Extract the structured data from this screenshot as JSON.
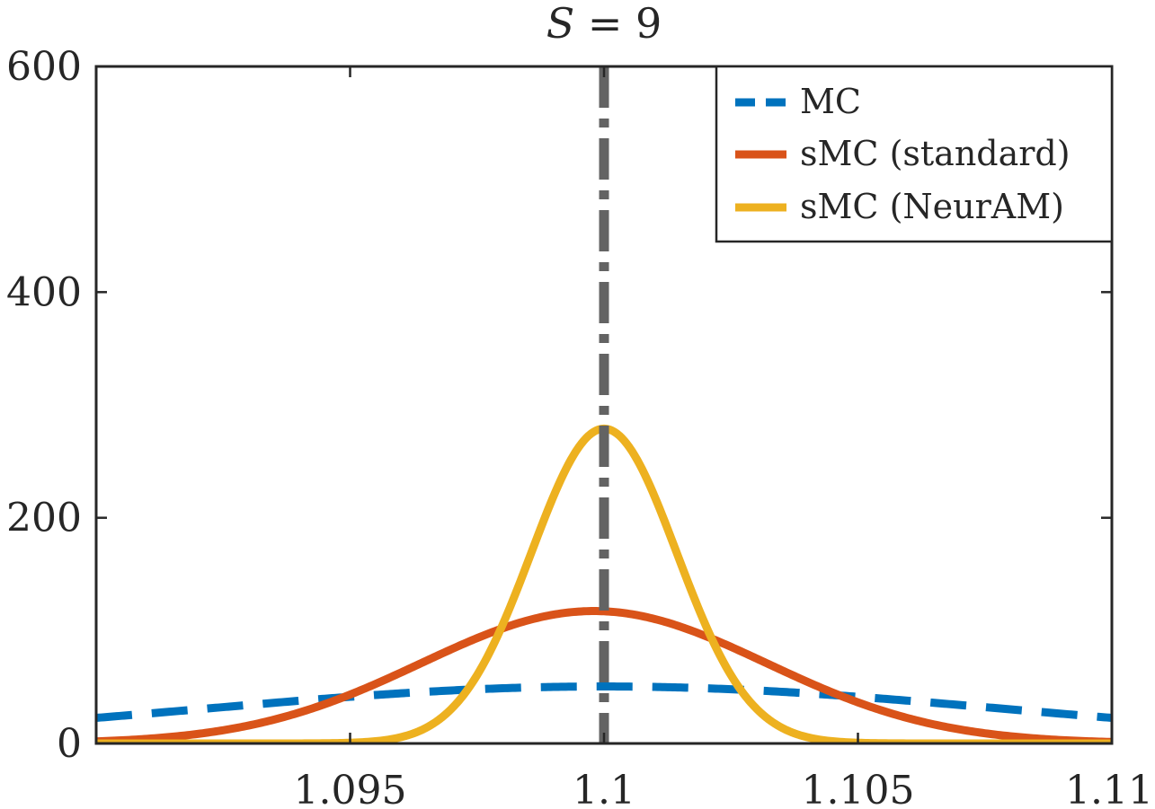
{
  "chart_data": {
    "type": "line",
    "title_var": "S",
    "title_rest": " = 9",
    "xlim": [
      1.09,
      1.11
    ],
    "ylim": [
      0,
      600
    ],
    "xticks": [
      1.095,
      1.1,
      1.105,
      1.11
    ],
    "xtick_labels": [
      "1.095",
      "1.1",
      "1.105",
      "1.11"
    ],
    "yticks": [
      0,
      200,
      400,
      600
    ],
    "ytick_labels": [
      "0",
      "200",
      "400",
      "600"
    ],
    "reference_line": {
      "x": 1.1,
      "color": "#636363",
      "style": "dash-dot"
    },
    "series": [
      {
        "name": "MC",
        "color": "#0072BD",
        "style": "dashed",
        "mean": 1.1,
        "std": 0.0079,
        "scale": 1.0
      },
      {
        "name": "sMC (standard)",
        "color": "#D95319",
        "style": "solid",
        "mean": 1.0998,
        "std": 0.0034,
        "scale": 1.0
      },
      {
        "name": "sMC (NeurAM)",
        "color": "#EDB120",
        "style": "solid",
        "mean": 1.1,
        "std": 0.00143,
        "scale": 1.0
      }
    ],
    "legend_position": "top-right"
  }
}
